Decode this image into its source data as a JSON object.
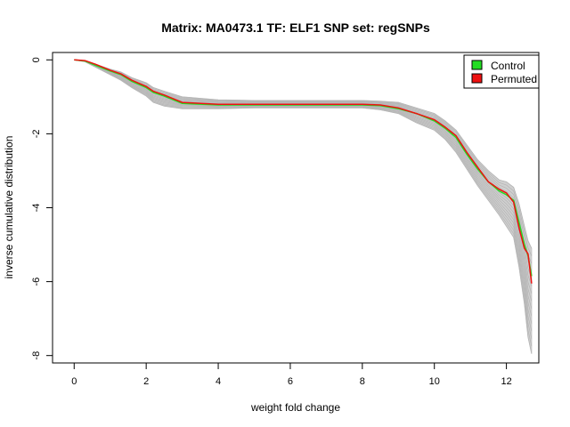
{
  "chart_data": {
    "type": "line",
    "title": "Matrix: MA0473.1 TF: ELF1 SNP set: regSNPs",
    "xlabel": "weight fold change",
    "ylabel": "inverse cumulative distribution",
    "xlim": [
      -0.6,
      12.9
    ],
    "ylim": [
      -8.2,
      0.2
    ],
    "xticks": [
      0,
      2,
      4,
      6,
      8,
      10,
      12
    ],
    "yticks": [
      0,
      -2,
      -4,
      -6,
      -8
    ],
    "grid": false,
    "legend_position": "top-right",
    "legend": [
      {
        "label": "Control",
        "color": "#22dd22"
      },
      {
        "label": "Permuted",
        "color": "#ee1111"
      }
    ],
    "background_band": {
      "color": "#c8c8c8",
      "x": [
        0.0,
        0.3,
        0.6,
        1.0,
        1.3,
        1.6,
        2.0,
        2.2,
        2.5,
        3.0,
        4.0,
        5.0,
        6.0,
        7.0,
        8.0,
        8.5,
        9.0,
        9.5,
        10.0,
        10.3,
        10.6,
        10.9,
        11.2,
        11.5,
        11.8,
        12.0,
        12.2,
        12.35,
        12.5,
        12.6,
        12.7
      ],
      "upper": [
        0.0,
        -0.02,
        -0.12,
        -0.25,
        -0.33,
        -0.48,
        -0.62,
        -0.75,
        -0.85,
        -1.0,
        -1.08,
        -1.1,
        -1.1,
        -1.1,
        -1.1,
        -1.12,
        -1.15,
        -1.3,
        -1.45,
        -1.65,
        -1.9,
        -2.3,
        -2.7,
        -3.0,
        -3.25,
        -3.3,
        -3.45,
        -3.9,
        -4.5,
        -4.9,
        -5.1
      ],
      "lower": [
        0.0,
        -0.05,
        -0.2,
        -0.4,
        -0.55,
        -0.75,
        -0.98,
        -1.15,
        -1.25,
        -1.32,
        -1.32,
        -1.3,
        -1.3,
        -1.3,
        -1.3,
        -1.35,
        -1.45,
        -1.7,
        -1.9,
        -2.15,
        -2.5,
        -2.95,
        -3.4,
        -3.8,
        -4.2,
        -4.5,
        -4.8,
        -5.6,
        -6.6,
        -7.5,
        -7.95
      ]
    },
    "series": [
      {
        "name": "Control",
        "color": "#22dd22",
        "x": [
          0.0,
          0.3,
          0.6,
          1.0,
          1.3,
          1.6,
          2.0,
          2.2,
          2.5,
          3.0,
          4.0,
          5.0,
          6.0,
          7.0,
          8.0,
          8.5,
          9.0,
          9.5,
          10.0,
          10.3,
          10.6,
          10.9,
          11.2,
          11.5,
          11.8,
          12.0,
          12.2,
          12.35,
          12.5,
          12.6,
          12.7
        ],
        "values": [
          0.0,
          -0.03,
          -0.15,
          -0.3,
          -0.4,
          -0.58,
          -0.75,
          -0.88,
          -0.98,
          -1.18,
          -1.22,
          -1.22,
          -1.22,
          -1.22,
          -1.22,
          -1.24,
          -1.32,
          -1.45,
          -1.65,
          -1.85,
          -2.1,
          -2.55,
          -2.95,
          -3.3,
          -3.55,
          -3.65,
          -3.8,
          -4.4,
          -5.0,
          -5.3,
          -5.85
        ]
      },
      {
        "name": "Permuted",
        "color": "#ee1111",
        "x": [
          0.0,
          0.3,
          0.6,
          1.0,
          1.3,
          1.6,
          2.0,
          2.2,
          2.5,
          3.0,
          4.0,
          5.0,
          6.0,
          7.0,
          8.0,
          8.5,
          9.0,
          9.5,
          10.0,
          10.3,
          10.6,
          10.9,
          11.2,
          11.5,
          11.8,
          12.0,
          12.2,
          12.35,
          12.5,
          12.6,
          12.7
        ],
        "values": [
          0.0,
          -0.02,
          -0.12,
          -0.28,
          -0.38,
          -0.55,
          -0.72,
          -0.85,
          -0.95,
          -1.15,
          -1.2,
          -1.2,
          -1.2,
          -1.2,
          -1.2,
          -1.22,
          -1.3,
          -1.45,
          -1.62,
          -1.82,
          -2.05,
          -2.5,
          -2.9,
          -3.3,
          -3.5,
          -3.6,
          -3.85,
          -4.55,
          -5.1,
          -5.25,
          -6.05
        ]
      }
    ]
  }
}
